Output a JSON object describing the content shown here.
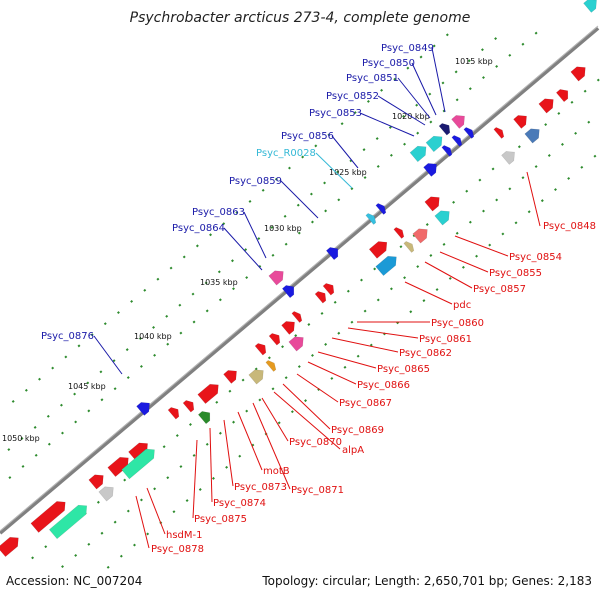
{
  "title": "Psychrobacter arcticus 273-4, complete genome",
  "footer": {
    "accession": "Accession: NC_007204",
    "stats": "Topology: circular; Length: 2,650,701 bp; Genes: 2,183"
  },
  "colors": {
    "backbone": "#808080",
    "ticks": "#2e8b2e",
    "label_forward": "#1a1aa8",
    "label_reverse": "#e01010",
    "label_rna": "#35b9d6"
  },
  "ticks": [
    "1015 kbp",
    "1020 kbp",
    "1025 kbp",
    "1030 kbp",
    "1035 kbp",
    "1040 kbp",
    "1045 kbp",
    "1050 kbp"
  ],
  "labels_forward": [
    "Psyc_0849",
    "Psyc_0850",
    "Psyc_0851",
    "Psyc_0852",
    "Psyc_0853",
    "Psyc_0856",
    "Psyc_R0028",
    "Psyc_0859",
    "Psyc_0863",
    "Psyc_0864",
    "Psyc_0876"
  ],
  "labels_reverse": [
    "Psyc_0848",
    "Psyc_0854",
    "Psyc_0855",
    "Psyc_0857",
    "pdc",
    "Psyc_0860",
    "Psyc_0861",
    "Psyc_0862",
    "Psyc_0865",
    "Psyc_0866",
    "Psyc_0867",
    "Psyc_0869",
    "alpA",
    "Psyc_0870",
    "Psyc_0871",
    "motB",
    "Psyc_0873",
    "Psyc_0874",
    "Psyc_0875",
    "hsdM-1",
    "Psyc_0878"
  ]
}
